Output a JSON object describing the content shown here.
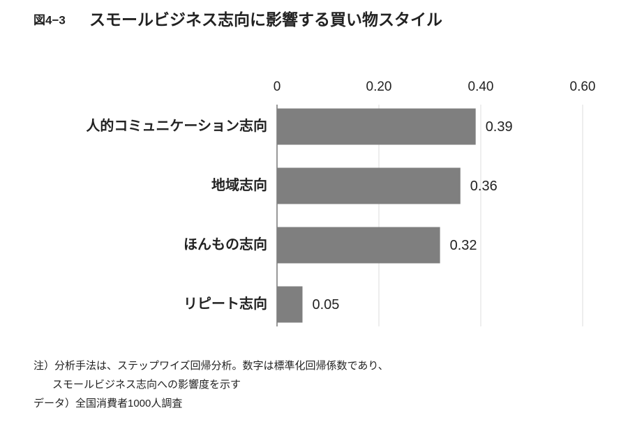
{
  "chart_data": {
    "type": "bar",
    "orientation": "horizontal",
    "figure_label": "図4−3",
    "title": "スモールビジネス志向に影響する買い物スタイル",
    "categories": [
      "人的コミュニケーション志向",
      "地域志向",
      "ほんもの志向",
      "リピート志向"
    ],
    "values": [
      0.39,
      0.36,
      0.32,
      0.05
    ],
    "color": "#7f7f7f",
    "xlim": [
      0,
      0.6
    ],
    "xticks": [
      0,
      {
        "value": 0.2,
        "label": "0.20"
      },
      {
        "value": 0.4,
        "label": "0.40"
      },
      {
        "value": 0.6,
        "label": "0.60"
      }
    ],
    "grid": true,
    "notes": [
      "注）分析手法は、ステップワイズ回帰分析。数字は標準化回帰係数であり、",
      "スモールビジネス志向への影響度を示す",
      "データ）全国消費者1000人調査"
    ]
  }
}
